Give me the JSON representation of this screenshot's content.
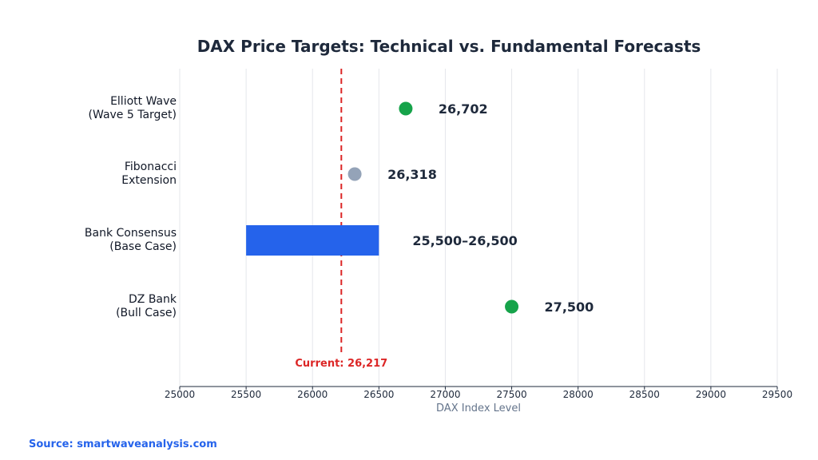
{
  "chart_data": {
    "type": "scatter",
    "title": "DAX Price Targets: Technical vs. Fundamental Forecasts",
    "xlabel": "DAX Index Level",
    "ylabel": "",
    "xlim": [
      25000,
      29500
    ],
    "xticks": [
      25000,
      25500,
      26000,
      26500,
      27000,
      27500,
      28000,
      28500,
      29000,
      29500
    ],
    "grid": "vertical",
    "categories": [
      {
        "lines": [
          "Elliott Wave",
          "(Wave 5 Target)"
        ],
        "kind": "point",
        "value": 26702,
        "label": "26,702",
        "color": "#16a34a"
      },
      {
        "lines": [
          "Fibonacci",
          "Extension"
        ],
        "kind": "point",
        "value": 26318,
        "label": "26,318",
        "color": "#94a3b8"
      },
      {
        "lines": [
          "Bank Consensus",
          "(Base Case)"
        ],
        "kind": "range",
        "low": 25500,
        "high": 26500,
        "label": "25,500–26,500",
        "color": "#2563eb"
      },
      {
        "lines": [
          "DZ Bank",
          "(Bull Case)"
        ],
        "kind": "point",
        "value": 27500,
        "label": "27,500",
        "color": "#16a34a"
      }
    ],
    "reference_line": {
      "value": 26217,
      "label": "Current: 26,217",
      "color": "#dc2626"
    }
  },
  "source": "Source: smartwaveanalysis.com"
}
